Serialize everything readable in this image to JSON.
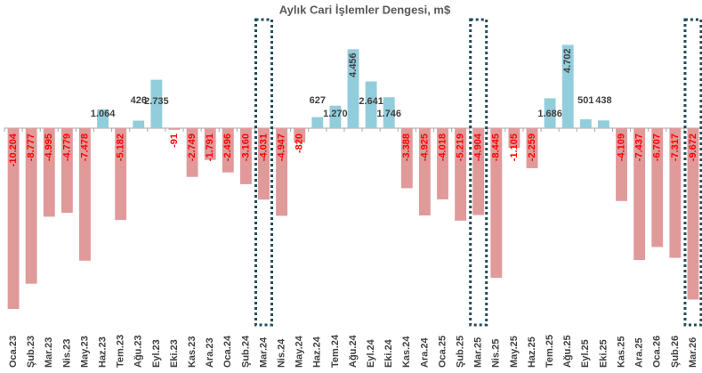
{
  "chart_data": {
    "type": "bar",
    "title": "Aylık Cari İşlemler Dengesi, m$",
    "categories": [
      "Oca.23",
      "Şub.23",
      "Mar.23",
      "Nis.23",
      "May.23",
      "Haz.23",
      "Tem.23",
      "Ağu.23",
      "Eyl.23",
      "Eki.23",
      "Kas.23",
      "Ara.23",
      "Oca.24",
      "Şub.24",
      "Mar.24",
      "Nis.24",
      "May.24",
      "Haz.24",
      "Tem.24",
      "Ağu.24",
      "Eyl.24",
      "Eki.24",
      "Kas.24",
      "Ara.24",
      "Oca.25",
      "Şub.25",
      "Mar.25",
      "Nis.25",
      "May.25",
      "Haz.25",
      "Tem.25",
      "Ağu.25",
      "Eyl.25",
      "Eki.25",
      "Kas.25",
      "Ara.25",
      "Oca.26",
      "Şub.26",
      "Mar.26"
    ],
    "values": [
      -10204,
      -8777,
      -4995,
      -4779,
      -7478,
      1064,
      -5182,
      426,
      2735,
      -91,
      -2749,
      -1791,
      -2496,
      -3160,
      -4031,
      -4947,
      -820,
      627,
      1270,
      4456,
      2641,
      1746,
      -3388,
      -4925,
      -4018,
      -5219,
      -4904,
      -8445,
      -1105,
      -2259,
      1686,
      4702,
      501,
      438,
      -4109,
      -7437,
      -6707,
      -7317,
      -9672
    ],
    "value_labels": [
      "-10.204",
      "-8.777",
      "-4.995",
      "-4.779",
      "-7.478",
      "1.064",
      "-5.182",
      "426",
      "2.735",
      "-91",
      "-2.749",
      "-1.791",
      "-2.496",
      "-3.160",
      "-4.031",
      "-4.947",
      "-820",
      "627",
      "1.270",
      "4.456",
      "2.641",
      "1.746",
      "-3.388",
      "-4.925",
      "-4.018",
      "-5.219",
      "-4.904",
      "-8.445",
      "-1.105",
      "-2.259",
      "1.686",
      "4.702",
      "501",
      "438",
      "-4.109",
      "-7.437",
      "-6.707",
      "-7.317",
      "-9.672"
    ],
    "colors": {
      "positive": "#92cddc",
      "negative": "#e09a9a"
    },
    "label_colors": {
      "positive": "#404040",
      "negative": "#ff0000"
    },
    "highlight": [
      14,
      26,
      38
    ]
  }
}
